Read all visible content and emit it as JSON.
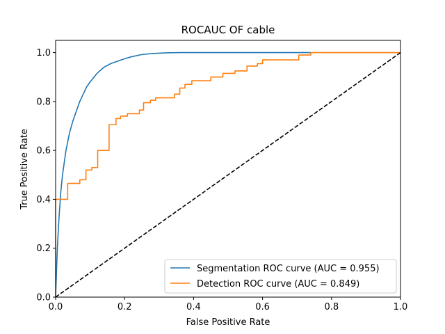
{
  "chart_data": {
    "type": "line",
    "title": "ROCAUC OF cable",
    "xlabel": "False Positive Rate",
    "ylabel": "True Positive Rate",
    "xlim": [
      0.0,
      1.0
    ],
    "ylim": [
      0.0,
      1.05
    ],
    "x_ticks": [
      "0.0",
      "0.2",
      "0.4",
      "0.6",
      "0.8",
      "1.0"
    ],
    "y_ticks": [
      "0.0",
      "0.2",
      "0.4",
      "0.6",
      "0.8",
      "1.0"
    ],
    "grid": false,
    "legend_position": "bottom-right",
    "series": [
      {
        "name": "Segmentation ROC curve (AUC = 0.955)",
        "color": "#1f77b4",
        "style": "solid",
        "x": [
          0.0,
          0.005,
          0.01,
          0.015,
          0.02,
          0.03,
          0.04,
          0.05,
          0.06,
          0.07,
          0.08,
          0.09,
          0.1,
          0.12,
          0.14,
          0.16,
          0.18,
          0.2,
          0.22,
          0.25,
          0.28,
          0.32,
          0.36,
          0.4,
          0.5,
          0.6,
          0.74
        ],
        "y": [
          0.0,
          0.2,
          0.33,
          0.43,
          0.5,
          0.6,
          0.67,
          0.72,
          0.76,
          0.8,
          0.83,
          0.86,
          0.88,
          0.915,
          0.94,
          0.955,
          0.965,
          0.975,
          0.983,
          0.992,
          0.996,
          0.999,
          1.0,
          1.0,
          1.0,
          1.0,
          1.0
        ]
      },
      {
        "name": "Detection ROC curve (AUC = 0.849)",
        "color": "#ff7f0e",
        "style": "step",
        "x": [
          0.0,
          0.0,
          0.035,
          0.035,
          0.07,
          0.07,
          0.088,
          0.088,
          0.105,
          0.105,
          0.122,
          0.122,
          0.155,
          0.155,
          0.175,
          0.175,
          0.188,
          0.188,
          0.208,
          0.208,
          0.243,
          0.243,
          0.255,
          0.255,
          0.275,
          0.275,
          0.29,
          0.29,
          0.345,
          0.345,
          0.36,
          0.36,
          0.375,
          0.375,
          0.395,
          0.395,
          0.45,
          0.45,
          0.485,
          0.485,
          0.52,
          0.52,
          0.555,
          0.555,
          0.585,
          0.585,
          0.6,
          0.6,
          0.705,
          0.705,
          0.74,
          0.74,
          1.0
        ],
        "y": [
          0.0,
          0.4,
          0.4,
          0.465,
          0.465,
          0.48,
          0.48,
          0.52,
          0.52,
          0.53,
          0.53,
          0.6,
          0.6,
          0.705,
          0.705,
          0.73,
          0.73,
          0.74,
          0.74,
          0.75,
          0.75,
          0.765,
          0.765,
          0.795,
          0.795,
          0.805,
          0.805,
          0.815,
          0.815,
          0.83,
          0.83,
          0.855,
          0.855,
          0.87,
          0.87,
          0.885,
          0.885,
          0.9,
          0.9,
          0.915,
          0.915,
          0.925,
          0.925,
          0.945,
          0.945,
          0.955,
          0.955,
          0.97,
          0.97,
          0.99,
          0.99,
          1.0,
          1.0
        ]
      },
      {
        "name": "",
        "color": "#000000",
        "style": "dashed",
        "x": [
          0.0,
          1.0
        ],
        "y": [
          0.0,
          1.0
        ]
      }
    ]
  }
}
